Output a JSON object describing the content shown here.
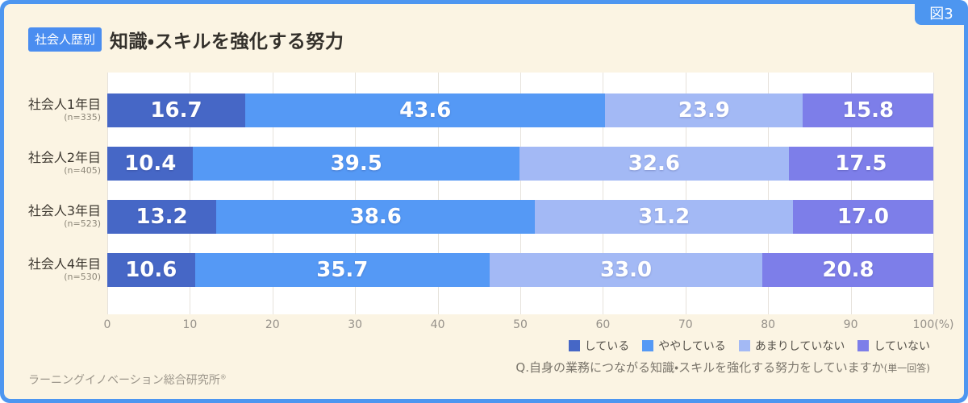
{
  "frame": {
    "figure_tag": "図3",
    "accent_color": "#4D96F0",
    "background_color": "#FBF4E3"
  },
  "header": {
    "badge": "社会人歴別",
    "title": "知識・スキルを強化する努力"
  },
  "chart_data": {
    "type": "bar",
    "stacked": true,
    "orientation": "horizontal",
    "unit": "%",
    "title": "知識・スキルを強化する努力",
    "categories": [
      "社会人1年目",
      "社会人2年目",
      "社会人3年目",
      "社会人4年目"
    ],
    "category_notes": [
      "(n=335)",
      "(n=405)",
      "(n=523)",
      "(n=530)"
    ],
    "series": [
      {
        "name": "している",
        "color": "#4667C6",
        "values": [
          16.7,
          10.4,
          13.2,
          10.6
        ]
      },
      {
        "name": "ややしている",
        "color": "#5599F5",
        "values": [
          43.6,
          39.5,
          38.6,
          35.7
        ]
      },
      {
        "name": "あまりしていない",
        "color": "#A3B9F5",
        "values": [
          23.9,
          32.6,
          31.2,
          33.0
        ]
      },
      {
        "name": "していない",
        "color": "#7D7EE9",
        "values": [
          15.8,
          17.5,
          17.0,
          20.8
        ]
      }
    ],
    "xlim": [
      0,
      100
    ],
    "x_tick_labels": [
      "0",
      "10",
      "20",
      "30",
      "40",
      "50",
      "60",
      "70",
      "80",
      "90",
      "100(%)"
    ],
    "grid": true,
    "legend_position": "bottom-right"
  },
  "footnote": {
    "question": "Q.自身の業務につながる知識・スキルを強化する努力をしていますか",
    "question_suffix": "(単一回答)"
  },
  "footer": {
    "source": "ラーニングイノベーション総合研究所",
    "registered_mark": "®"
  }
}
